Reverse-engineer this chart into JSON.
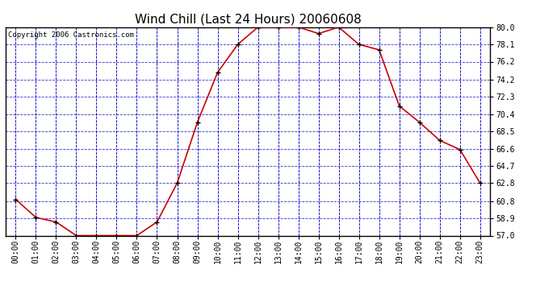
{
  "title": "Wind Chill (Last 24 Hours) 20060608",
  "copyright_text": "Copyright 2006 Castronics.com",
  "x_labels": [
    "00:00",
    "01:00",
    "02:00",
    "03:00",
    "04:00",
    "05:00",
    "06:00",
    "07:00",
    "08:00",
    "09:00",
    "10:00",
    "11:00",
    "12:00",
    "13:00",
    "14:00",
    "15:00",
    "16:00",
    "17:00",
    "18:00",
    "19:00",
    "20:00",
    "21:00",
    "22:00",
    "23:00"
  ],
  "y_values": [
    61.0,
    59.0,
    58.5,
    57.0,
    57.0,
    57.0,
    57.0,
    58.5,
    62.8,
    69.5,
    75.0,
    78.1,
    80.0,
    80.0,
    80.0,
    79.3,
    80.0,
    78.1,
    77.5,
    71.3,
    69.5,
    67.5,
    66.5,
    62.8
  ],
  "line_color": "#cc0000",
  "marker_color": "#000000",
  "bg_color": "#ffffff",
  "plot_bg_color": "#ffffff",
  "grid_color": "#0000cc",
  "y_min": 57.0,
  "y_max": 80.0,
  "y_ticks": [
    57.0,
    58.9,
    60.8,
    62.8,
    64.7,
    66.6,
    68.5,
    70.4,
    72.3,
    74.2,
    76.2,
    78.1,
    80.0
  ],
  "title_fontsize": 11,
  "tick_fontsize": 7,
  "copyright_fontsize": 6.5
}
